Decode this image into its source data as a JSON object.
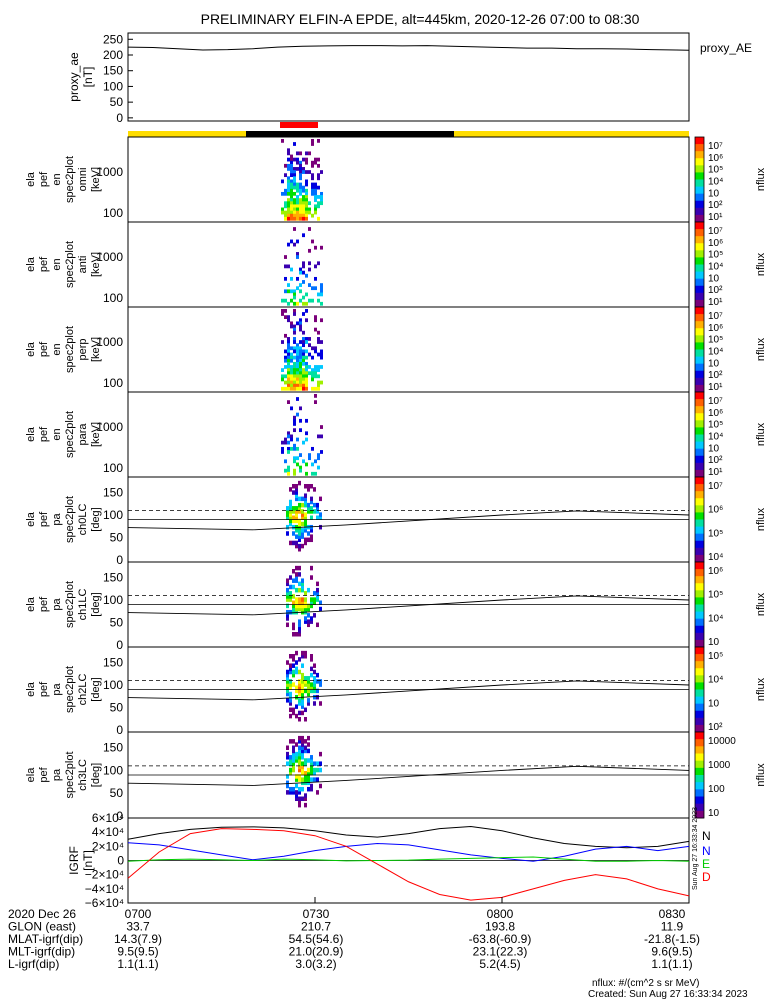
{
  "title": "PRELIMINARY ELFIN-A EPDE, alt=445km, 2020-12-26 07:00 to 08:30",
  "colors": {
    "rainbow": [
      "#7a007a",
      "#3a00b0",
      "#0000e0",
      "#0070ff",
      "#00c8ff",
      "#00e0a0",
      "#00e000",
      "#a0f000",
      "#ffff00",
      "#ffb000",
      "#ff6000",
      "#ff0000"
    ],
    "status_yellow": "#ffdd00",
    "status_black": "#000000",
    "status_red": "#ff0000",
    "bx": "#000000",
    "by": "#0000ff",
    "bz": "#00cc00",
    "bd": "#ff0000"
  },
  "chart_data": [
    {
      "type": "line",
      "ylabel": "proxy_ae [nT]",
      "legend": "proxy_AE",
      "yticks": [
        "250",
        "200",
        "150",
        "100",
        "50",
        "0"
      ],
      "ylim": [
        -10,
        270
      ],
      "x": [
        0,
        4,
        8,
        12,
        16,
        20,
        24,
        28,
        32,
        36,
        40,
        44,
        48,
        52,
        56,
        60,
        64,
        68,
        72,
        76,
        80,
        84,
        88,
        90
      ],
      "values": [
        225,
        224,
        220,
        216,
        217,
        220,
        225,
        228,
        229,
        230,
        230,
        229,
        230,
        228,
        226,
        224,
        222,
        222,
        220,
        220,
        219,
        217,
        216,
        215
      ]
    },
    {
      "type": "heatmap",
      "ylabel": "ela pef en spec2plot omni [keV]",
      "yticks": [
        "1000",
        "100"
      ],
      "scale": "log",
      "cbar_label": "nflux",
      "cbar_ticks": [
        "10⁷",
        "10⁶",
        "10⁵",
        "10⁴",
        "10⁳",
        "10²",
        "10¹"
      ]
    },
    {
      "type": "heatmap",
      "ylabel": "ela pef en spec2plot anti [keV]",
      "yticks": [
        "1000",
        "100"
      ],
      "scale": "log",
      "cbar_label": "nflux",
      "cbar_ticks": [
        "10⁷",
        "10⁶",
        "10⁵",
        "10⁴",
        "10⁳",
        "10²",
        "10¹"
      ]
    },
    {
      "type": "heatmap",
      "ylabel": "ela pef en spec2plot perp [keV]",
      "yticks": [
        "1000",
        "100"
      ],
      "scale": "log",
      "cbar_label": "nflux",
      "cbar_ticks": [
        "10⁷",
        "10⁶",
        "10⁵",
        "10⁴",
        "10⁳",
        "10²",
        "10¹"
      ]
    },
    {
      "type": "heatmap",
      "ylabel": "ela pef en spec2plot para [keV]",
      "yticks": [
        "1000",
        "100"
      ],
      "scale": "log",
      "cbar_label": "nflux",
      "cbar_ticks": [
        "10⁷",
        "10⁶",
        "10⁵",
        "10⁴",
        "10⁳",
        "10²",
        "10¹"
      ]
    },
    {
      "type": "heatmap",
      "ylabel": "ela pef pa spec2plot ch0LC [deg]",
      "yticks": [
        "150",
        "100",
        "50",
        "0"
      ],
      "cbar_label": "nflux",
      "cbar_ticks": [
        "10⁷",
        "10⁶",
        "10⁵",
        "10⁴"
      ]
    },
    {
      "type": "heatmap",
      "ylabel": "ela pef pa spec2plot ch1LC [deg]",
      "yticks": [
        "150",
        "100",
        "50",
        "0"
      ],
      "cbar_label": "nflux",
      "cbar_ticks": [
        "10⁶",
        "10⁵",
        "10⁴",
        "10⁳"
      ]
    },
    {
      "type": "heatmap",
      "ylabel": "ela pef pa spec2plot ch2LC [deg]",
      "yticks": [
        "150",
        "100",
        "50",
        "0"
      ],
      "cbar_label": "nflux",
      "cbar_ticks": [
        "10⁵",
        "10⁴",
        "10⁳",
        "10²"
      ]
    },
    {
      "type": "heatmap",
      "ylabel": "ela pef pa spec2plot ch3LC [deg]",
      "yticks": [
        "150",
        "100",
        "50",
        "0"
      ],
      "cbar_label": "nflux",
      "cbar_ticks": [
        "10000",
        "1000",
        "100",
        "10"
      ]
    },
    {
      "type": "line",
      "ylabel": "IGRF [nT]",
      "yticks": [
        "6×10⁴",
        "4×10⁴",
        "2×10⁴",
        "0",
        "−2×10⁴",
        "−4×10⁴",
        "−6×10⁴"
      ],
      "ylim": [
        -60000,
        60000
      ],
      "legend": [
        "N",
        "N",
        "E",
        "D"
      ],
      "side_text": "Sun Aug 27 16:33:34 2023",
      "x": [
        0,
        5,
        10,
        15,
        20,
        25,
        30,
        35,
        40,
        45,
        50,
        55,
        60,
        65,
        70,
        75,
        80,
        85,
        90
      ],
      "series": [
        {
          "name": "N",
          "values": [
            30000,
            38000,
            44000,
            47000,
            47500,
            46000,
            42000,
            36000,
            33000,
            38000,
            45000,
            48000,
            42000,
            32000,
            24000,
            20000,
            18000,
            20000,
            27000
          ]
        },
        {
          "name": "N",
          "values": [
            25000,
            22000,
            15000,
            8000,
            1000,
            6000,
            14000,
            20000,
            24000,
            22000,
            15000,
            8000,
            3000,
            -1000,
            6000,
            16000,
            20000,
            14000,
            20000
          ]
        },
        {
          "name": "E",
          "values": [
            -1000,
            1000,
            2000,
            1000,
            0,
            2000,
            1000,
            -500,
            0,
            500,
            2000,
            3000,
            4000,
            5000,
            2000,
            -1000,
            -1000,
            0,
            -1000
          ]
        },
        {
          "name": "D",
          "values": [
            -25000,
            12000,
            38000,
            45000,
            44000,
            42000,
            35000,
            20000,
            -5000,
            -30000,
            -48000,
            -56000,
            -52000,
            -40000,
            -28000,
            -20000,
            -26000,
            -40000,
            -50000
          ]
        }
      ]
    }
  ],
  "pa_panel": {
    "dashed_level": 110,
    "solid_level": 90
  },
  "time_axis": {
    "ticks": [
      "0700",
      "0730",
      "0800",
      "0830"
    ]
  },
  "orbit_table": {
    "rows": [
      {
        "label": "2020 Dec 26",
        "values": [
          "0700",
          "0730",
          "0800",
          "0830"
        ]
      },
      {
        "label": "GLON (east)",
        "values": [
          "33.7",
          "210.7",
          "193.8",
          "11.9"
        ]
      },
      {
        "label": "MLAT-igrf(dip)",
        "values": [
          "14.3(7.9)",
          "54.5(54.6)",
          "-63.8(-60.9)",
          "-21.8(-1.5)"
        ]
      },
      {
        "label": "MLT-igrf(dip)",
        "values": [
          "9.5(9.5)",
          "21.0(20.9)",
          "23.1(22.3)",
          "9.6(9.5)"
        ]
      },
      {
        "label": "L-igrf(dip)",
        "values": [
          "1.1(1.1)",
          "3.0(3.2)",
          "5.2(4.5)",
          "1.1(1.1)"
        ]
      }
    ]
  },
  "footer": {
    "units": "nflux: #/(cm^2 s sr MeV)",
    "created": "Created: Sun Aug 27 16:33:34 2023"
  }
}
